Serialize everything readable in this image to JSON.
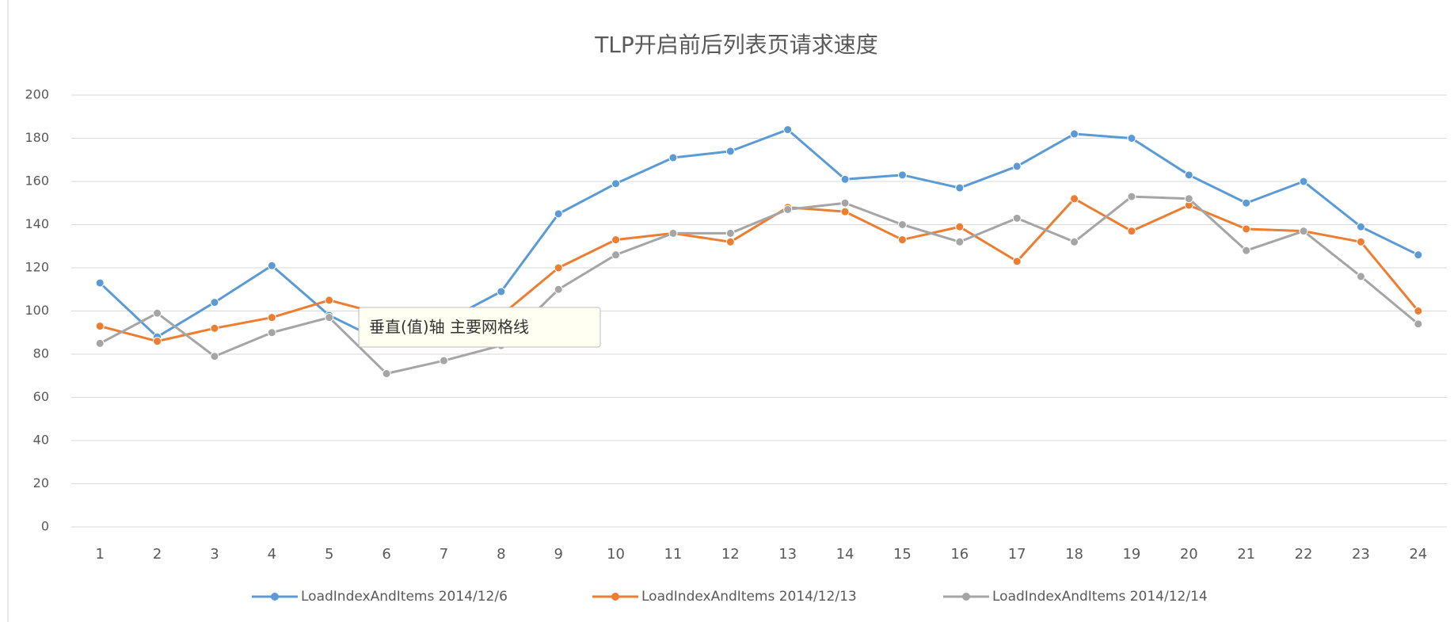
{
  "chart_data": {
    "type": "line",
    "title": "TLP开启前后列表页请求速度",
    "categories": [
      "1",
      "2",
      "3",
      "4",
      "5",
      "6",
      "7",
      "8",
      "9",
      "10",
      "11",
      "12",
      "13",
      "14",
      "15",
      "16",
      "17",
      "18",
      "19",
      "20",
      "21",
      "22",
      "23",
      "24"
    ],
    "series": [
      {
        "name": "LoadIndexAndItems 2014/12/6",
        "color": "#5b9bd5",
        "values": [
          113,
          88,
          104,
          121,
          98,
          85,
          95,
          109,
          145,
          159,
          171,
          174,
          184,
          161,
          163,
          157,
          167,
          182,
          180,
          163,
          150,
          160,
          139,
          126
        ]
      },
      {
        "name": "LoadIndexAndItems 2014/12/13",
        "color": "#ed7d31",
        "values": [
          93,
          86,
          92,
          97,
          105,
          98,
          95,
          98,
          120,
          133,
          136,
          132,
          148,
          146,
          133,
          139,
          123,
          152,
          137,
          149,
          138,
          137,
          132,
          100
        ]
      },
      {
        "name": "LoadIndexAndItems 2014/12/14",
        "color": "#a5a5a5",
        "values": [
          85,
          99,
          79,
          90,
          97,
          71,
          77,
          84,
          110,
          126,
          136,
          136,
          147,
          150,
          140,
          132,
          143,
          132,
          153,
          152,
          128,
          137,
          116,
          94
        ]
      }
    ],
    "ylim": [
      0,
      200
    ],
    "yticks": [
      0,
      20,
      40,
      60,
      80,
      100,
      120,
      140,
      160,
      180,
      200
    ],
    "grid": true,
    "legend": "bottom",
    "tooltip": "垂直(值)轴 主要网格线"
  }
}
